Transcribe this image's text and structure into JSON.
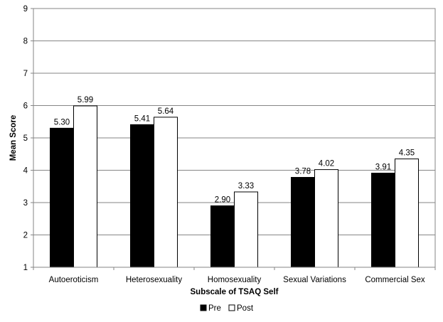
{
  "chart_data": {
    "type": "bar",
    "title": "",
    "xlabel": "Subscale of TSAQ Self",
    "ylabel": "Mean Score",
    "ylim": [
      1,
      9
    ],
    "yticks": [
      1,
      2,
      3,
      4,
      5,
      6,
      7,
      8,
      9
    ],
    "categories": [
      "Autoeroticism",
      "Heterosexuality",
      "Homosexuality",
      "Sexual Variations",
      "Commercial Sex"
    ],
    "series": [
      {
        "name": "Pre",
        "color": "#000000",
        "values": [
          5.3,
          5.41,
          2.9,
          3.78,
          3.91
        ],
        "labels": [
          "5.30",
          "5.41",
          "2.90",
          "3.78",
          "3.91"
        ]
      },
      {
        "name": "Post",
        "color": "#ffffff",
        "values": [
          5.99,
          5.64,
          3.33,
          4.02,
          4.35
        ],
        "labels": [
          "5.99",
          "5.64",
          "3.33",
          "4.02",
          "4.35"
        ]
      }
    ],
    "grid": true,
    "legend_position": "bottom"
  }
}
